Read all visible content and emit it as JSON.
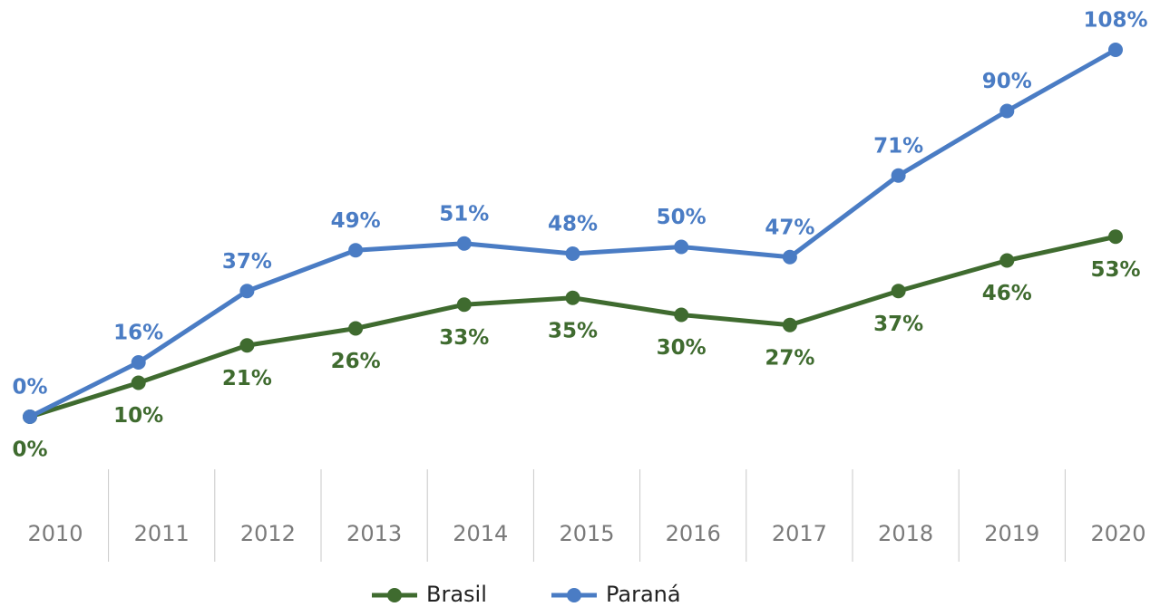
{
  "chart_data": {
    "type": "line",
    "categories": [
      "2010",
      "2011",
      "2012",
      "2013",
      "2014",
      "2015",
      "2016",
      "2017",
      "2018",
      "2019",
      "2020"
    ],
    "series": [
      {
        "name": "Brasil",
        "color": "#3f6b2f",
        "values": [
          0,
          10,
          21,
          26,
          33,
          35,
          30,
          27,
          37,
          46,
          53
        ],
        "value_labels": [
          "0%",
          "10%",
          "21%",
          "26%",
          "33%",
          "35%",
          "30%",
          "27%",
          "37%",
          "46%",
          "53%"
        ]
      },
      {
        "name": "Paraná",
        "color": "#4a7cc4",
        "values": [
          0,
          16,
          37,
          49,
          51,
          48,
          50,
          47,
          71,
          90,
          108
        ],
        "value_labels": [
          "0%",
          "16%",
          "37%",
          "49%",
          "51%",
          "48%",
          "50%",
          "47%",
          "71%",
          "90%",
          "108%"
        ]
      }
    ],
    "ylim": [
      0,
      108
    ],
    "legend": "bottom"
  }
}
